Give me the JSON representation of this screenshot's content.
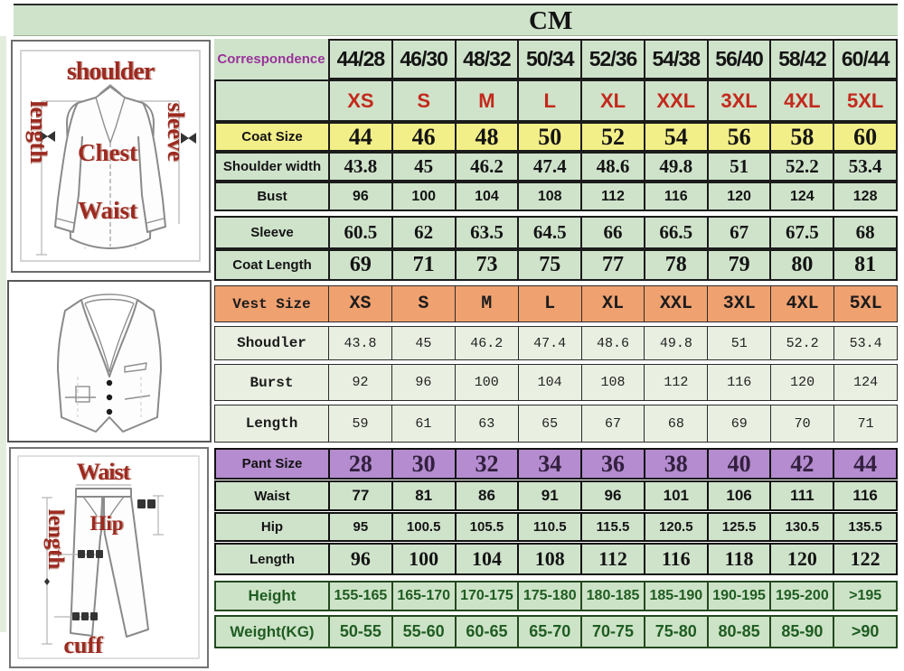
{
  "unit_title": "CM",
  "colors": {
    "table_green": "#cfe3cb",
    "vest_row_green": "#e9efe1",
    "body_row_green": "#cde3c7",
    "coat_size_yellow": "#f3ef88",
    "vest_size_orange": "#f0a170",
    "pant_size_purple": "#b48ccf",
    "size_letter_red": "#c3291c",
    "correspondence_purple": "#993399",
    "height_weight_green": "#1f5c22",
    "diagram_label_red": "#9c2a20"
  },
  "illustrations": {
    "jacket": {
      "shoulder": "shoulder",
      "length": "length",
      "sleeve": "sleeve",
      "chest": "Chest",
      "waist": "Waist"
    },
    "pants": {
      "waist": "Waist",
      "length": "length",
      "hip": "Hip",
      "cuff": "cuff"
    }
  },
  "chart_data": {
    "type": "table",
    "title": "CM",
    "rows": [
      {
        "id": "correspondence",
        "label": "Correspondence",
        "values": [
          "44/28",
          "46/30",
          "48/32",
          "50/34",
          "52/36",
          "54/38",
          "56/40",
          "58/42",
          "60/44"
        ]
      },
      {
        "id": "size-letters",
        "label": "",
        "values": [
          "XS",
          "S",
          "M",
          "L",
          "XL",
          "XXL",
          "3XL",
          "4XL",
          "5XL"
        ]
      },
      {
        "id": "coat-size",
        "label": "Coat Size",
        "values": [
          "44",
          "46",
          "48",
          "50",
          "52",
          "54",
          "56",
          "58",
          "60"
        ]
      },
      {
        "id": "shoulder-width",
        "label": "Shoulder width",
        "values": [
          "43.8",
          "45",
          "46.2",
          "47.4",
          "48.6",
          "49.8",
          "51",
          "52.2",
          "53.4"
        ]
      },
      {
        "id": "bust",
        "label": "Bust",
        "values": [
          "96",
          "100",
          "104",
          "108",
          "112",
          "116",
          "120",
          "124",
          "128"
        ]
      },
      {
        "id": "sleeve",
        "label": "Sleeve",
        "values": [
          "60.5",
          "62",
          "63.5",
          "64.5",
          "66",
          "66.5",
          "67",
          "67.5",
          "68"
        ]
      },
      {
        "id": "coat-length",
        "label": "Coat Length",
        "values": [
          "69",
          "71",
          "73",
          "75",
          "77",
          "78",
          "79",
          "80",
          "81"
        ]
      },
      {
        "id": "vest-size",
        "label": "Vest Size",
        "values": [
          "XS",
          "S",
          "M",
          "L",
          "XL",
          "XXL",
          "3XL",
          "4XL",
          "5XL"
        ]
      },
      {
        "id": "vest-shoulder",
        "label": "Shoudler",
        "values": [
          "43.8",
          "45",
          "46.2",
          "47.4",
          "48.6",
          "49.8",
          "51",
          "52.2",
          "53.4"
        ]
      },
      {
        "id": "vest-bust",
        "label": "Burst",
        "values": [
          "92",
          "96",
          "100",
          "104",
          "108",
          "112",
          "116",
          "120",
          "124"
        ]
      },
      {
        "id": "vest-length",
        "label": "Length",
        "values": [
          "59",
          "61",
          "63",
          "65",
          "67",
          "68",
          "69",
          "70",
          "71"
        ]
      },
      {
        "id": "pant-size",
        "label": "Pant Size",
        "values": [
          "28",
          "30",
          "32",
          "34",
          "36",
          "38",
          "40",
          "42",
          "44"
        ]
      },
      {
        "id": "pant-waist",
        "label": "Waist",
        "values": [
          "77",
          "81",
          "86",
          "91",
          "96",
          "101",
          "106",
          "111",
          "116"
        ]
      },
      {
        "id": "pant-hip",
        "label": "Hip",
        "values": [
          "95",
          "100.5",
          "105.5",
          "110.5",
          "115.5",
          "120.5",
          "125.5",
          "130.5",
          "135.5"
        ]
      },
      {
        "id": "pant-length",
        "label": "Length",
        "values": [
          "96",
          "100",
          "104",
          "108",
          "112",
          "116",
          "118",
          "120",
          "122"
        ]
      },
      {
        "id": "height",
        "label": "Height",
        "values": [
          "155-165",
          "165-170",
          "170-175",
          "175-180",
          "180-185",
          "185-190",
          "190-195",
          "195-200",
          ">195"
        ]
      },
      {
        "id": "weight",
        "label": "Weight(KG)",
        "values": [
          "50-55",
          "55-60",
          "60-65",
          "65-70",
          "70-75",
          "75-80",
          "80-85",
          "85-90",
          ">90"
        ]
      }
    ]
  }
}
